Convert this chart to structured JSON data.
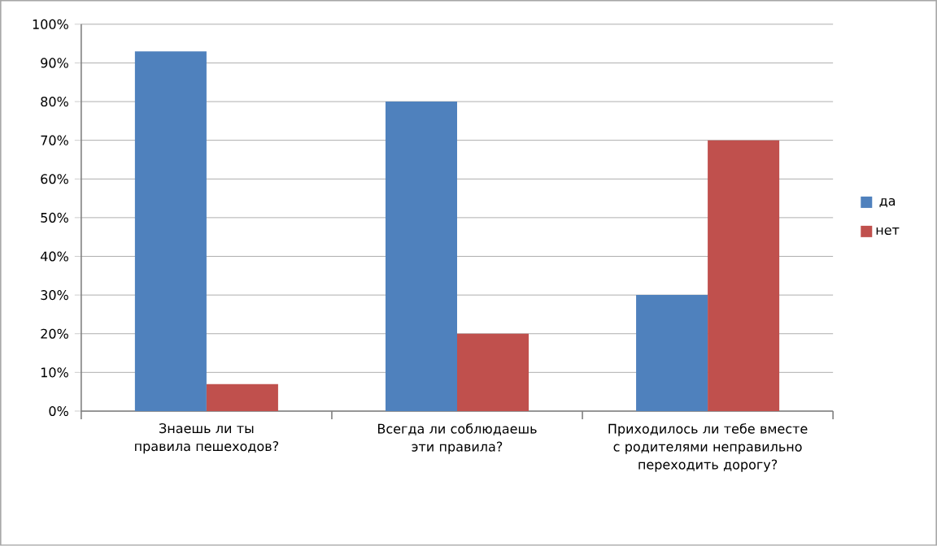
{
  "chart_data": {
    "type": "bar",
    "categories": [
      "Знаешь ли ты правила пешеходов?",
      "Всегда ли соблюдаешь эти правила?",
      "Приходилось ли тебе вместе с родителями неправильно переходить дорогу?"
    ],
    "series": [
      {
        "name": "да",
        "color": "#4f81bd",
        "values": [
          93,
          80,
          30
        ]
      },
      {
        "name": "нет",
        "color": "#c0504d",
        "values": [
          7,
          20,
          70
        ]
      }
    ],
    "ylim": [
      0,
      100
    ],
    "yticks": [
      {
        "value": 0,
        "label": "0%"
      },
      {
        "value": 10,
        "label": "10%"
      },
      {
        "value": 20,
        "label": "20%"
      },
      {
        "value": 30,
        "label": "30%"
      },
      {
        "value": 40,
        "label": "40%"
      },
      {
        "value": 50,
        "label": "50%"
      },
      {
        "value": 60,
        "label": "60%"
      },
      {
        "value": 70,
        "label": "70%"
      },
      {
        "value": 80,
        "label": "80%"
      },
      {
        "value": 90,
        "label": "90%"
      },
      {
        "value": 100,
        "label": "100%"
      }
    ],
    "grid": "y",
    "legend": "right"
  }
}
